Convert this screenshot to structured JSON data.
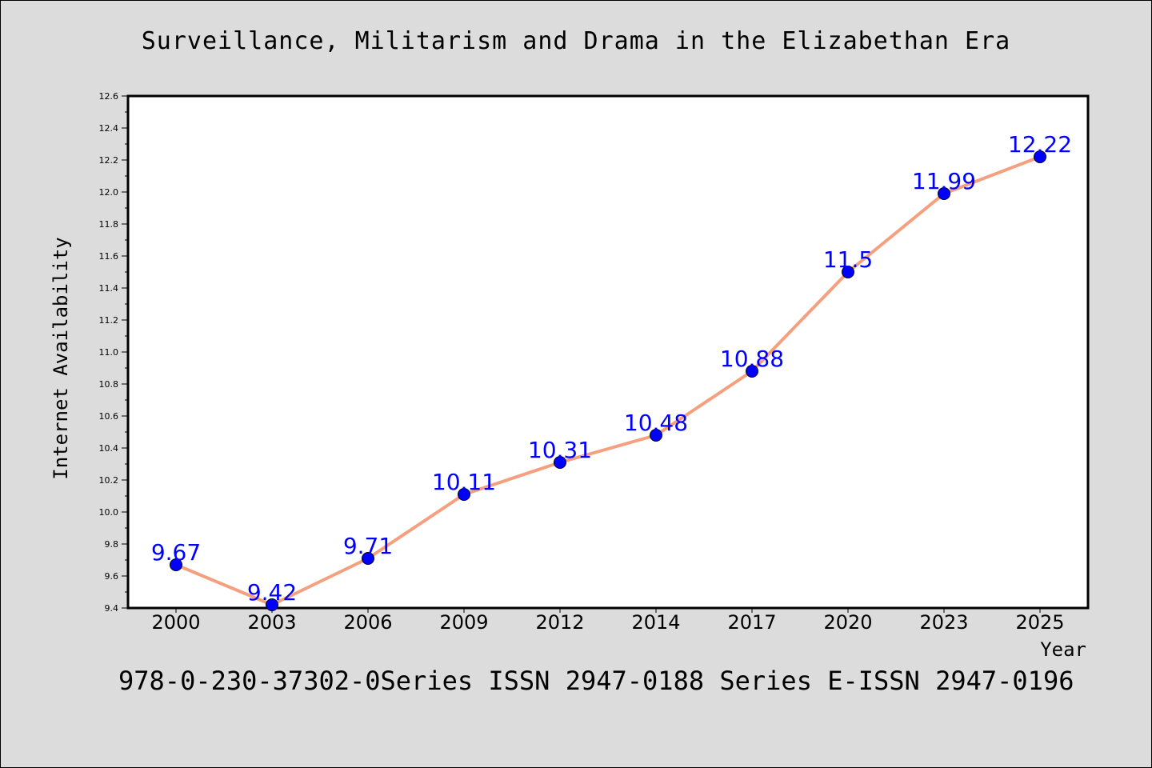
{
  "title": "Surveillance, Militarism and Drama in the Elizabethan Era",
  "caption": "978-0-230-37302-0Series ISSN 2947-0188 Series E-ISSN 2947-0196",
  "chart_data": {
    "type": "line",
    "title": "Surveillance, Militarism and Drama in the Elizabethan Era",
    "xlabel": "Year",
    "ylabel": "Internet Availability",
    "categories": [
      "2000",
      "2003",
      "2006",
      "2009",
      "2012",
      "2014",
      "2017",
      "2020",
      "2023",
      "2025"
    ],
    "series": [
      {
        "values": [
          9.67,
          9.42,
          9.71,
          10.11,
          10.31,
          10.48,
          10.88,
          11.5,
          11.99,
          12.22
        ],
        "labels": [
          "9.67",
          "9.42",
          "9.71",
          "10.11",
          "10.31",
          "10.48",
          "10.88",
          "11.5",
          "11.99",
          "12.22"
        ]
      }
    ],
    "ylim": [
      9.4,
      12.6
    ],
    "y_ticks": [
      "9.4",
      "9.6",
      "9.8",
      "10.0",
      "10.2",
      "10.4",
      "10.6",
      "10.8",
      "11.0",
      "11.2",
      "11.4",
      "11.6",
      "11.8",
      "12.0",
      "12.2",
      "12.4",
      "12.6"
    ],
    "grid": false,
    "legend": "none",
    "colors": {
      "line": "#f4a07f",
      "marker": "#0000ff",
      "data_label": "#0000ff",
      "background": "#dcdcdc",
      "plot_background": "#ffffff"
    }
  }
}
